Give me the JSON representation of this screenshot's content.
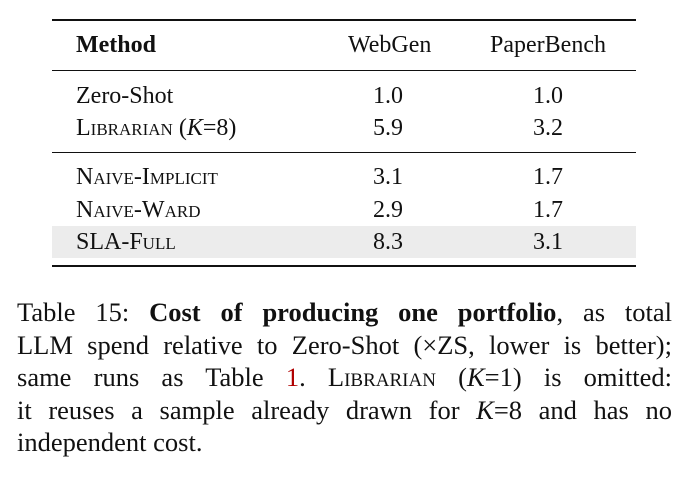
{
  "table": {
    "header": [
      "Method",
      "WebGen",
      "PaperBench"
    ],
    "groups": [
      [
        {
          "method": [
            {
              "text": "Zero-Shot"
            }
          ],
          "values": [
            "1.0",
            "1.0"
          ]
        },
        {
          "method": [
            {
              "text": "Librarian",
              "style": "smallcaps"
            },
            {
              "text": " ("
            },
            {
              "text": "K",
              "style": "italic"
            },
            {
              "text": "=8)"
            }
          ],
          "values": [
            "5.9",
            "3.2"
          ]
        }
      ],
      [
        {
          "method": [
            {
              "text": "Naive-Implicit",
              "style": "smallcaps"
            }
          ],
          "values": [
            "3.1",
            "1.7"
          ]
        },
        {
          "method": [
            {
              "text": "Naive-Ward",
              "style": "smallcaps"
            }
          ],
          "values": [
            "2.9",
            "1.7"
          ]
        },
        {
          "method": [
            {
              "text": "SLA-Full",
              "style": "smallcaps"
            }
          ],
          "values": [
            "8.3",
            "3.1"
          ],
          "highlight": true
        }
      ]
    ]
  },
  "caption": [
    [
      {
        "text": "Table 15: "
      },
      {
        "text": "Cost of producing one portfolio",
        "style": "bold"
      },
      {
        "text": ", as total"
      }
    ],
    [
      {
        "text": "LLM spend relative to Zero-Shot (×ZS, lower is better);"
      }
    ],
    [
      {
        "text": "same runs as Table "
      },
      {
        "text": "1",
        "style": "link"
      },
      {
        "text": ". "
      },
      {
        "text": "Librarian",
        "style": "smallcaps"
      },
      {
        "text": " ("
      },
      {
        "text": "K",
        "style": "italic"
      },
      {
        "text": "=1) is omitted:"
      }
    ],
    [
      {
        "text": "it reuses a sample already drawn for "
      },
      {
        "text": "K",
        "style": "italic"
      },
      {
        "text": "=8 and has no"
      }
    ],
    [
      {
        "text": "independent cost."
      }
    ]
  ]
}
